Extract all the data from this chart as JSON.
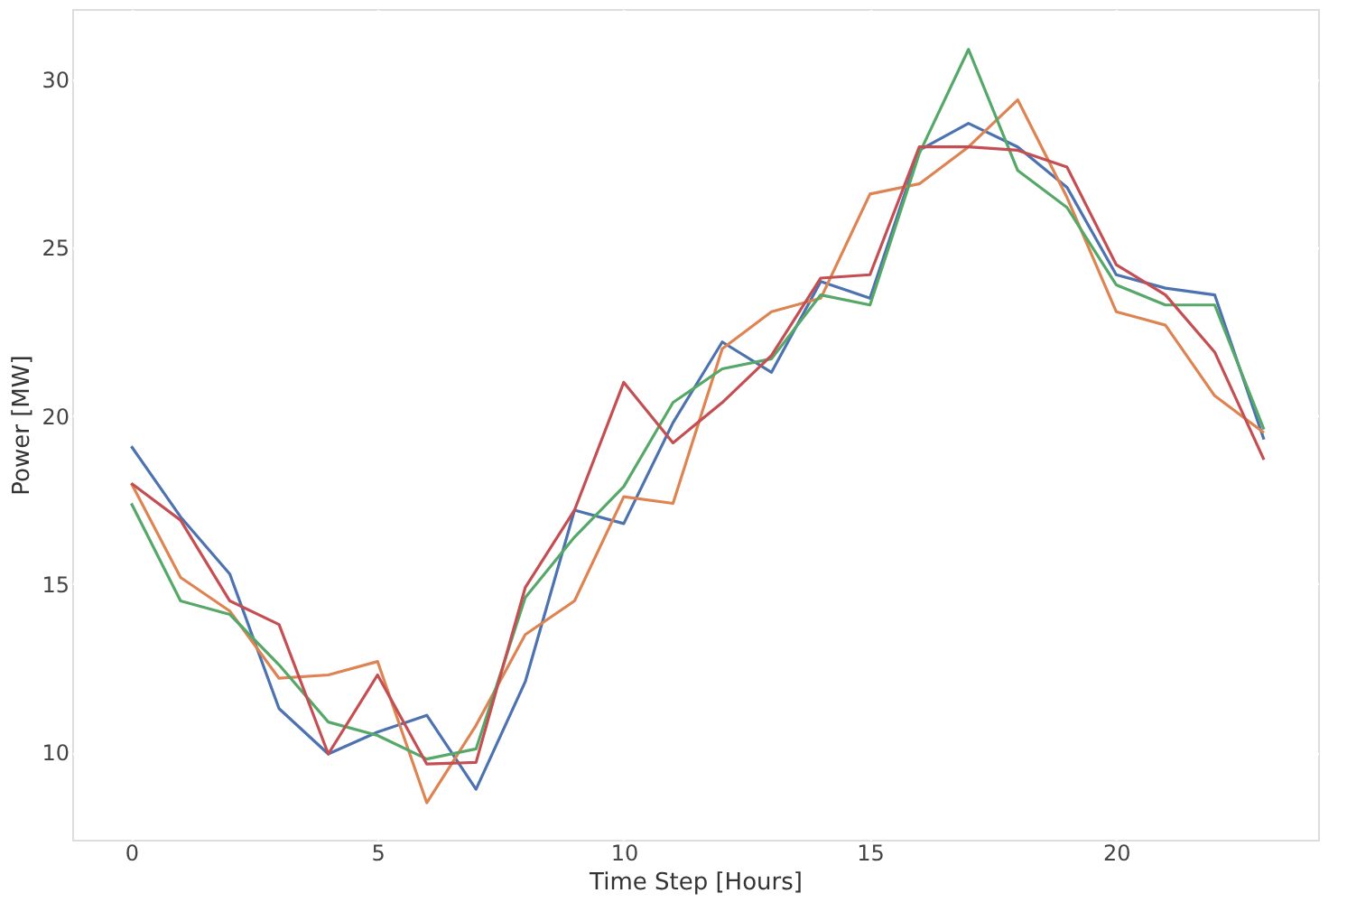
{
  "chart_data": {
    "type": "line",
    "xlabel": "Time Step [Hours]",
    "ylabel": "Power  [MW]",
    "x": [
      0,
      1,
      2,
      3,
      4,
      5,
      6,
      7,
      8,
      9,
      10,
      11,
      12,
      13,
      14,
      15,
      16,
      17,
      18,
      19,
      20,
      21,
      22,
      23
    ],
    "series": [
      {
        "color": "#4c72b0",
        "values": [
          19.1,
          17.0,
          15.3,
          11.3,
          9.95,
          10.6,
          11.1,
          8.9,
          12.1,
          17.2,
          16.8,
          19.8,
          22.2,
          21.3,
          24.0,
          23.5,
          27.9,
          28.7,
          28.0,
          26.8,
          24.2,
          23.8,
          23.6,
          19.3
        ]
      },
      {
        "color": "#dd8452",
        "values": [
          18.0,
          15.2,
          14.2,
          12.2,
          12.3,
          12.7,
          8.5,
          10.8,
          13.5,
          14.5,
          17.6,
          17.4,
          22.0,
          23.1,
          23.5,
          26.6,
          26.9,
          28.0,
          29.4,
          26.5,
          23.1,
          22.7,
          20.6,
          19.5
        ]
      },
      {
        "color": "#55a868",
        "values": [
          17.4,
          14.5,
          14.1,
          12.6,
          10.9,
          10.5,
          9.8,
          10.1,
          14.6,
          16.4,
          17.9,
          20.4,
          21.4,
          21.7,
          23.6,
          23.3,
          27.8,
          30.9,
          27.3,
          26.2,
          23.9,
          23.3,
          23.3,
          19.6
        ]
      },
      {
        "color": "#c44e52",
        "values": [
          18.0,
          16.9,
          14.5,
          13.8,
          9.95,
          12.3,
          9.65,
          9.7,
          14.9,
          17.2,
          21.0,
          19.2,
          20.4,
          21.8,
          24.1,
          24.2,
          28.0,
          28.0,
          27.9,
          27.4,
          24.5,
          23.6,
          21.9,
          18.7
        ]
      }
    ],
    "xlim": [
      -1.2,
      24.1
    ],
    "ylim": [
      7.4,
      32.1
    ],
    "xticks": [
      0,
      5,
      10,
      15,
      20
    ],
    "yticks": [
      10,
      15,
      20,
      25,
      30
    ],
    "grid": true,
    "legend": false,
    "marker": "none",
    "line_style": "solid"
  }
}
